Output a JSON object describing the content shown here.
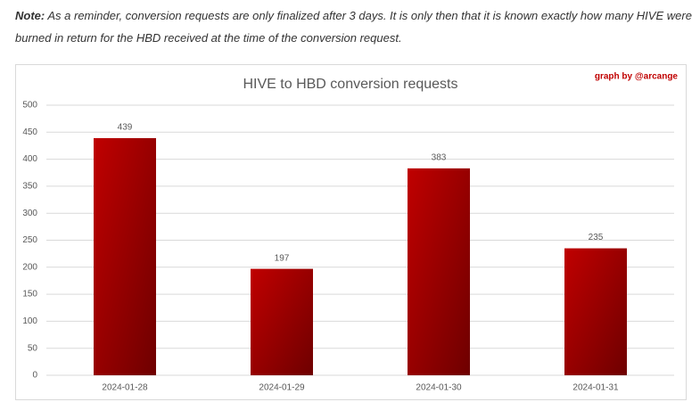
{
  "note": {
    "label": "Note:",
    "text": "As a reminder, conversion requests are only finalized after 3 days. It is only then that it is known exactly how many HIVE were burned in return for the HBD received at the time of the conversion request."
  },
  "chart_data": {
    "type": "bar",
    "title": "HIVE to HBD conversion requests",
    "annotation": "graph by @arcange",
    "categories": [
      "2024-01-28",
      "2024-01-29",
      "2024-01-30",
      "2024-01-31"
    ],
    "values": [
      439,
      197,
      383,
      235
    ],
    "color": "#c00000",
    "ylim": [
      0,
      500
    ],
    "yticks": [
      0,
      50,
      100,
      150,
      200,
      250,
      300,
      350,
      400,
      450,
      500
    ],
    "grid": true
  }
}
